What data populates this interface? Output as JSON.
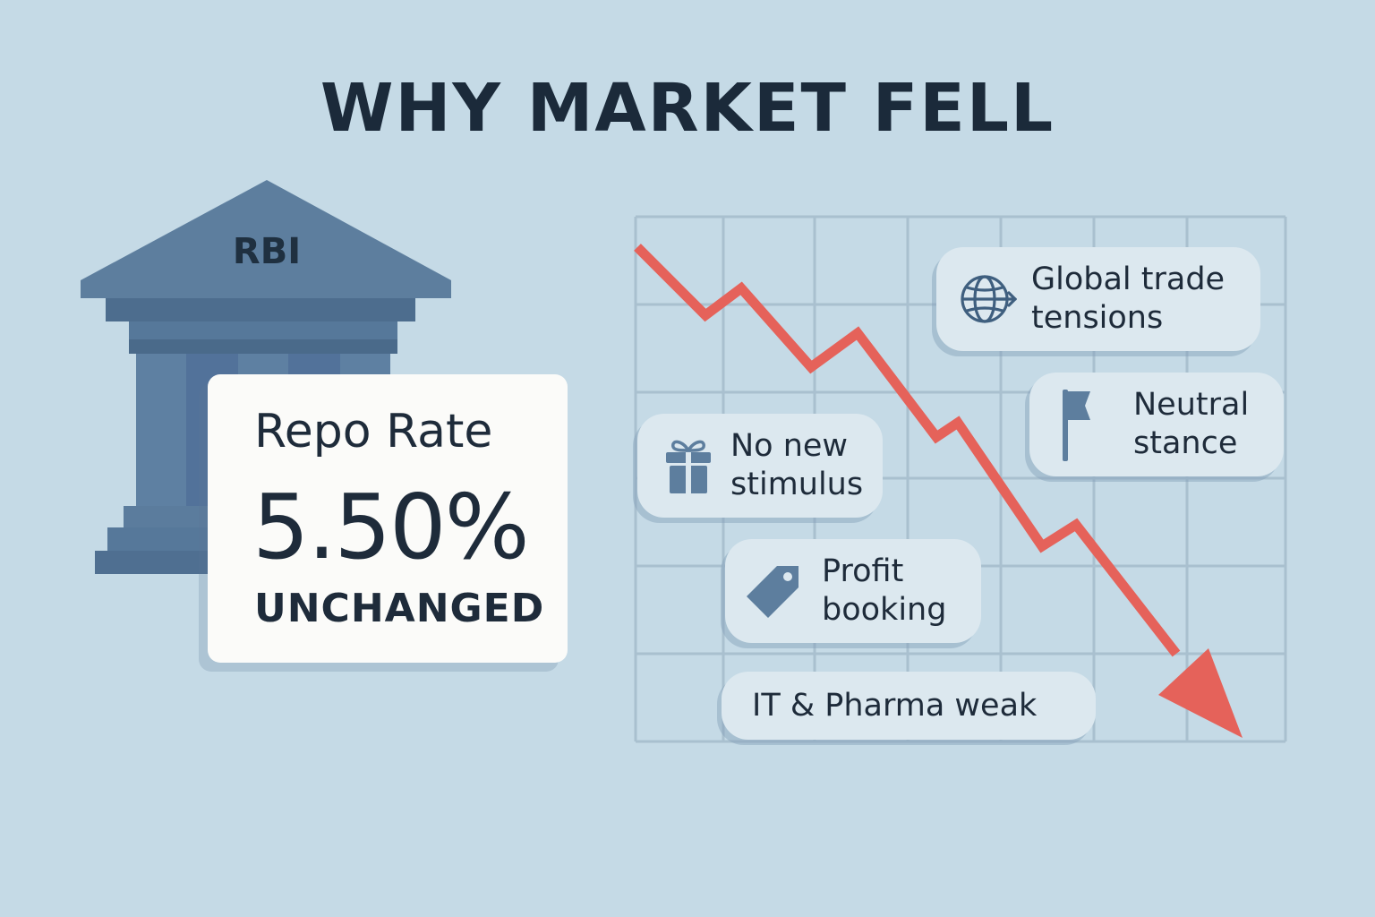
{
  "title": "WHY MARKET FELL",
  "bank": {
    "label": "RBI",
    "icon": "bank-building-icon"
  },
  "repo_card": {
    "label": "Repo Rate",
    "value": "5.50%",
    "status": "UNCHANGED"
  },
  "trend": {
    "direction": "down",
    "icon": "down-trend-arrow-icon"
  },
  "factors": [
    {
      "text": "Global trade\ntensions",
      "icon": "globe-arrow-icon"
    },
    {
      "text": "Neutral\nstance",
      "icon": "flag-icon"
    },
    {
      "text": "No new\nstimulus",
      "icon": "gift-icon"
    },
    {
      "text": "Profit\nbooking",
      "icon": "price-tag-icon"
    },
    {
      "text": "IT & Pharma weak"
    }
  ],
  "colors": {
    "background": "#c5dae6",
    "bank": "#56789a",
    "arrow": "#e5625a",
    "card": "#fbfbf9",
    "pill": "#dce8ef",
    "text": "#1e2b3a"
  }
}
